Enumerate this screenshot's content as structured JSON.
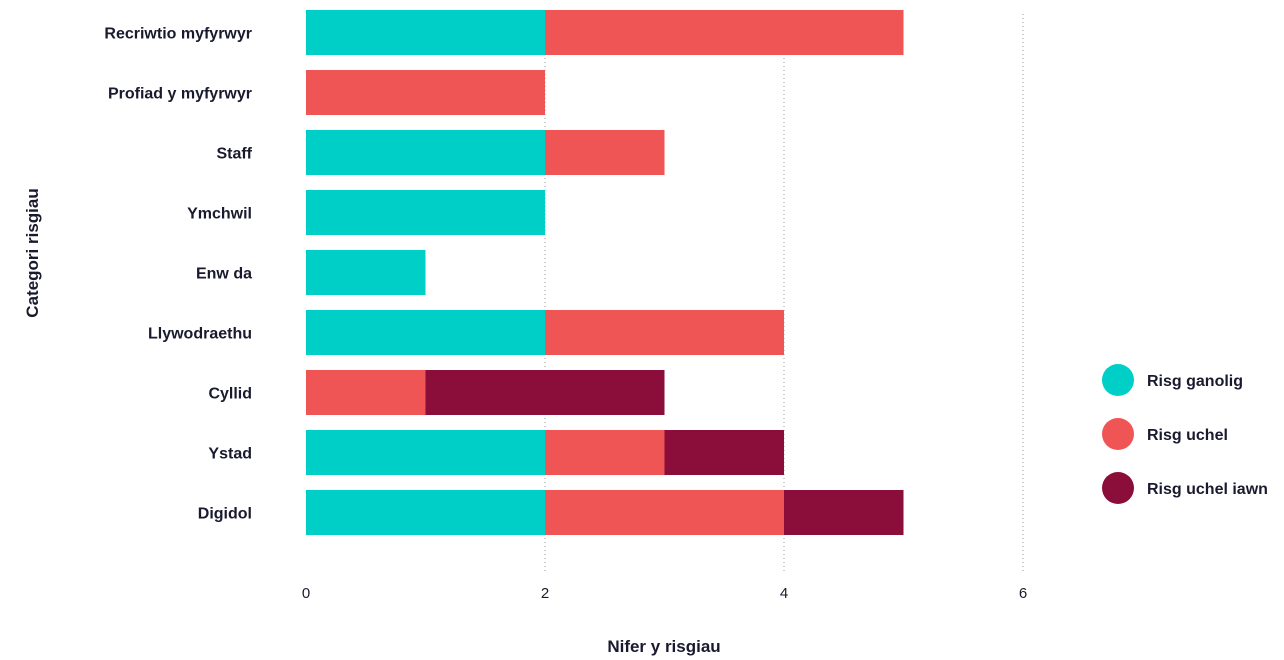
{
  "chart_data": {
    "type": "bar",
    "orientation": "horizontal",
    "stacked": true,
    "categories": [
      "Recriwtio myfyrwyr",
      "Profiad y myfyrwyr",
      "Staff",
      "Ymchwil",
      "Enw da",
      "Llywodraethu",
      "Cyllid",
      "Ystad",
      "Digidol"
    ],
    "series": [
      {
        "name": "Risg ganolig",
        "color": "#00cfc8",
        "values": [
          2,
          0,
          2,
          2,
          1,
          2,
          0,
          2,
          2
        ]
      },
      {
        "name": "Risg uchel",
        "color": "#ef5555",
        "values": [
          3,
          2,
          1,
          0,
          0,
          2,
          1,
          1,
          2
        ]
      },
      {
        "name": "Risg uchel iawn",
        "color": "#8b0d3a",
        "values": [
          0,
          0,
          0,
          0,
          0,
          0,
          2,
          1,
          1
        ]
      }
    ],
    "xlabel": "Nifer y risgiau",
    "ylabel": "Categori risgiau",
    "xlim": [
      0,
      6
    ],
    "xticks": [
      "0",
      "2",
      "4",
      "6"
    ],
    "grid": true,
    "legend_position": "right"
  }
}
